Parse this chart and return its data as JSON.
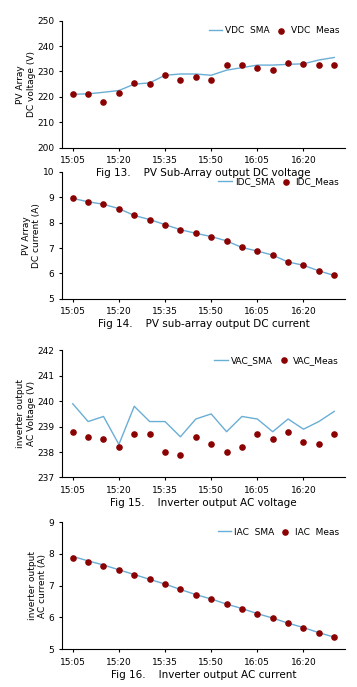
{
  "fig13": {
    "title": "Fig 13.    PV Sub-Array output DC voltage",
    "ylabel1": "PV Array",
    "ylabel2": "DC voltage (V)",
    "ylim": [
      200,
      250
    ],
    "yticks": [
      200,
      210,
      220,
      230,
      240,
      250
    ],
    "legend_sma": "VDC  SMA",
    "legend_meas": "VDC  Meas",
    "x_labels": [
      "15:05",
      "15:20",
      "15:35",
      "15:50",
      "16:05",
      "16:20"
    ],
    "x_vals": [
      0,
      3,
      6,
      9,
      12,
      15,
      18,
      21,
      24,
      27,
      30,
      33,
      36,
      39,
      42,
      45,
      48,
      51
    ],
    "sma_y": [
      221.0,
      221.2,
      221.8,
      222.5,
      225.0,
      225.5,
      228.5,
      229.0,
      229.0,
      228.5,
      230.5,
      231.5,
      232.5,
      232.5,
      232.8,
      233.0,
      234.5,
      235.5
    ],
    "meas_y": [
      221.0,
      221.0,
      218.0,
      221.5,
      225.5,
      225.0,
      228.5,
      226.5,
      228.0,
      226.5,
      232.5,
      232.5,
      231.5,
      230.5,
      233.5,
      233.0,
      232.5,
      232.5
    ]
  },
  "fig14": {
    "title": "Fig 14.    PV sub-array output DC current",
    "ylabel1": "PV Array",
    "ylabel2": "DC current (A)",
    "ylim": [
      5,
      10
    ],
    "yticks": [
      5,
      6,
      7,
      8,
      9,
      10
    ],
    "legend_sma": "IDC_SMA",
    "legend_meas": "IDC_Meas",
    "x_labels": [
      "15:05",
      "15:20",
      "15:35",
      "15:50",
      "16:05",
      "16:20"
    ],
    "x_vals": [
      0,
      3,
      6,
      9,
      12,
      15,
      18,
      21,
      24,
      27,
      30,
      33,
      36,
      39,
      42,
      45,
      48,
      51
    ],
    "sma_y": [
      8.95,
      8.82,
      8.72,
      8.55,
      8.28,
      8.12,
      7.92,
      7.72,
      7.58,
      7.45,
      7.28,
      7.02,
      6.88,
      6.72,
      6.45,
      6.32,
      6.1,
      5.92
    ],
    "meas_y": [
      8.95,
      8.8,
      8.72,
      8.52,
      8.28,
      8.1,
      7.92,
      7.72,
      7.58,
      7.45,
      7.28,
      7.02,
      6.88,
      6.72,
      6.45,
      6.32,
      6.1,
      5.92
    ]
  },
  "fig15": {
    "title": "Fig 15.    Inverter output AC voltage",
    "ylabel1": "inverter output",
    "ylabel2": "AC Voltage (V)",
    "ylim": [
      237,
      242
    ],
    "yticks": [
      237,
      238,
      239,
      240,
      241,
      242
    ],
    "legend_sma": "VAC_SMA",
    "legend_meas": "VAC_Meas",
    "x_labels": [
      "15:05",
      "15:20",
      "15:35",
      "15:50",
      "16:05",
      "16:20"
    ],
    "x_vals": [
      0,
      3,
      6,
      9,
      12,
      15,
      18,
      21,
      24,
      27,
      30,
      33,
      36,
      39,
      42,
      45,
      48,
      51
    ],
    "sma_y": [
      239.9,
      239.2,
      239.4,
      238.3,
      239.8,
      239.2,
      239.2,
      238.6,
      239.3,
      239.5,
      238.8,
      239.4,
      239.3,
      238.8,
      239.3,
      238.9,
      239.2,
      239.6
    ],
    "meas_y": [
      238.8,
      238.6,
      238.5,
      238.2,
      238.7,
      238.7,
      238.0,
      237.9,
      238.6,
      238.3,
      238.0,
      238.2,
      238.7,
      238.5,
      238.8,
      238.4,
      238.3,
      238.7
    ]
  },
  "fig16": {
    "title": "Fig 16.    Inverter output AC current",
    "ylabel1": "inverter output",
    "ylabel2": "AC current (A)",
    "ylim": [
      5,
      9
    ],
    "yticks": [
      5,
      6,
      7,
      8,
      9
    ],
    "legend_sma": "IAC  SMA",
    "legend_meas": "IAC  Meas",
    "x_labels": [
      "15:05",
      "15:20",
      "15:35",
      "15:50",
      "16:05",
      "16:20"
    ],
    "x_vals": [
      0,
      3,
      6,
      9,
      12,
      15,
      18,
      21,
      24,
      27,
      30,
      33,
      36,
      39,
      42,
      45,
      48,
      51
    ],
    "sma_y": [
      7.92,
      7.78,
      7.65,
      7.5,
      7.35,
      7.2,
      7.05,
      6.88,
      6.72,
      6.58,
      6.42,
      6.28,
      6.12,
      5.98,
      5.82,
      5.68,
      5.52,
      5.38
    ],
    "meas_y": [
      7.88,
      7.75,
      7.62,
      7.48,
      7.35,
      7.2,
      7.05,
      6.88,
      6.72,
      6.58,
      6.42,
      6.28,
      6.12,
      5.98,
      5.82,
      5.68,
      5.52,
      5.38
    ]
  },
  "line_color_sma": "#6aaed6",
  "marker_color_meas": "#8b0000",
  "marker_size": 14,
  "line_width": 1.0,
  "font_size_label": 6.5,
  "font_size_tick": 6.5,
  "font_size_legend": 6.5,
  "font_size_caption": 7.5,
  "x_tick_positions": [
    0,
    9,
    18,
    27,
    36,
    45
  ]
}
